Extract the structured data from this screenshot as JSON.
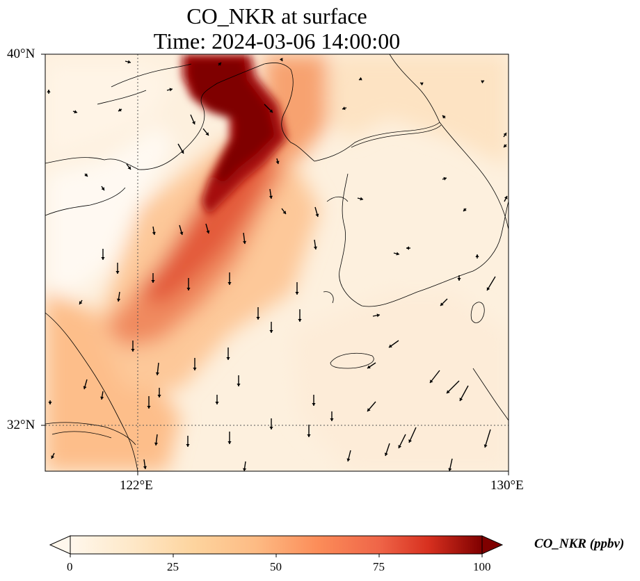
{
  "title": {
    "line1": "CO_NKR at surface",
    "line2": "Time: 2024-03-06 14:00:00"
  },
  "map": {
    "lat_range": [
      31,
      40.3
    ],
    "lon_range": [
      120,
      130
    ],
    "lat_ticks": [
      {
        "value": 40,
        "label": "40°N"
      },
      {
        "value": 32,
        "label": "32°N"
      }
    ],
    "lon_ticks": [
      {
        "value": 122,
        "label": "122°E"
      },
      {
        "value": 130,
        "label": "130°E"
      }
    ],
    "gridlines": "dotted"
  },
  "colorbar": {
    "label": "CO_NKR (ppbv)",
    "min": 0,
    "max": 100,
    "extend": "both",
    "colormap": "OrRd",
    "ticks": [
      {
        "value": 0,
        "label": "0"
      },
      {
        "value": 25,
        "label": "25"
      },
      {
        "value": 50,
        "label": "50"
      },
      {
        "value": 75,
        "label": "75"
      },
      {
        "value": 100,
        "label": "100"
      }
    ]
  },
  "colors": {
    "background_low": "#fff7ec",
    "mid": "#fdbb84",
    "high": "#d7301f",
    "max": "#7f0000"
  },
  "features": [
    "concentration field",
    "coastlines",
    "wind vectors"
  ]
}
